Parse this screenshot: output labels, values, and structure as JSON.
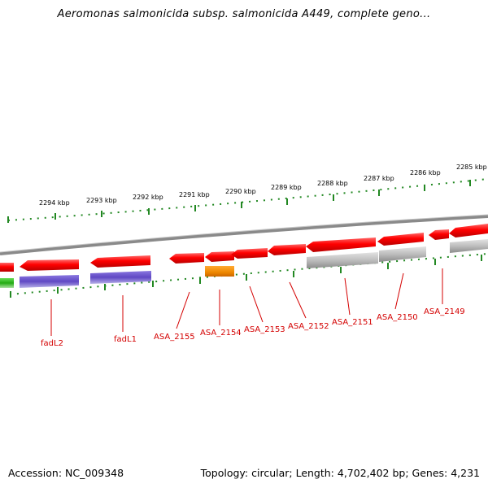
{
  "title": "Aeromonas salmonicida subsp. salmonicida A449, complete geno...",
  "accession": "Accession: NC_009348",
  "topology": "Topology: circular; Length: 4,702,402 bp; Genes: 4,231",
  "colors": {
    "gene": "#e00000",
    "gene_alt": "#aaaaaa",
    "feature_blue": "#6a50c8",
    "feature_green": "#33bb22",
    "feature_orange": "#ee8800",
    "backbone": "#888888",
    "tick": "#228822",
    "label": "#d40000"
  },
  "kbp_labels": [
    "2294 kbp",
    "2293 kbp",
    "2292 kbp",
    "2291 kbp",
    "2290 kbp",
    "2289 kbp",
    "2288 kbp",
    "2287 kbp",
    "2286 kbp",
    "2285 kbp"
  ],
  "gene_labels": [
    "fadL2",
    "fadL1",
    "ASA_2155",
    "ASA_2154",
    "ASA_2153",
    "ASA_2152",
    "ASA_2151",
    "ASA_2150",
    "ASA_2149"
  ]
}
